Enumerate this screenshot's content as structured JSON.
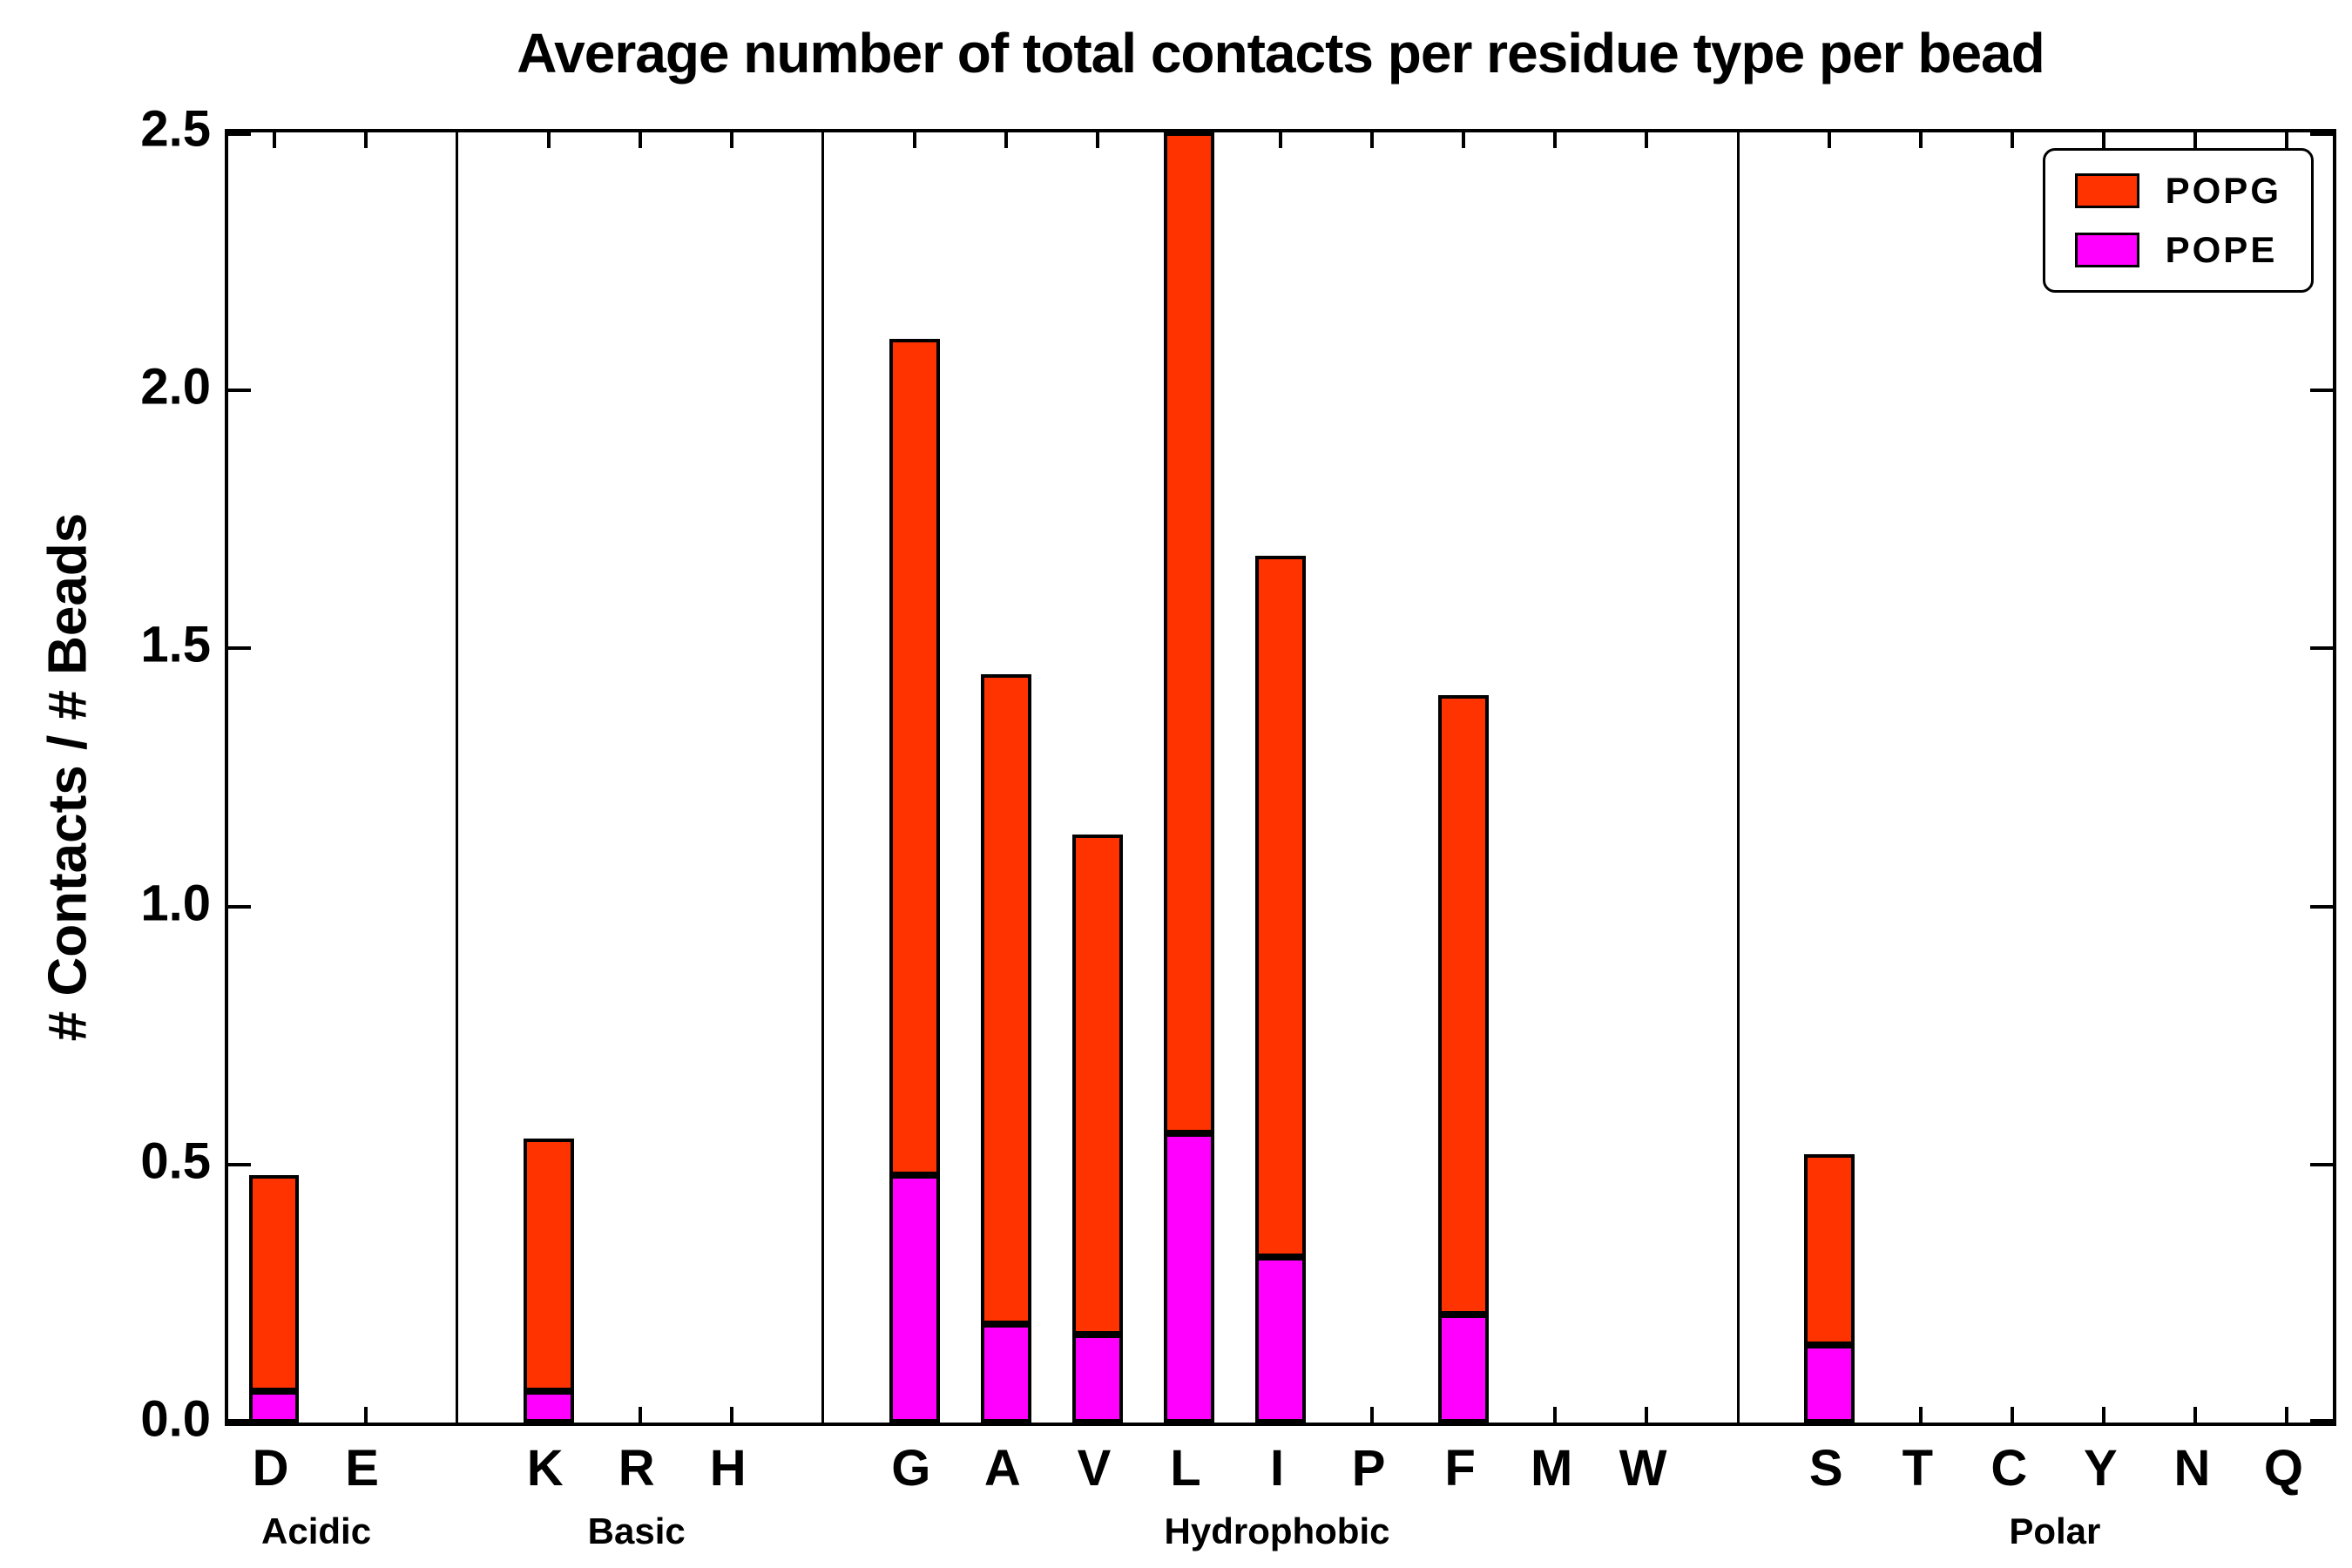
{
  "chart_data": {
    "type": "bar",
    "stacked": true,
    "title": "Average number of total contacts per residue type per bead",
    "ylabel": "# Contacts / # Beads",
    "ylim": [
      0,
      2.5
    ],
    "yticks": [
      0.0,
      0.5,
      1.0,
      1.5,
      2.0,
      2.5
    ],
    "categories": [
      "D",
      "E",
      "K",
      "R",
      "H",
      "G",
      "A",
      "V",
      "L",
      "I",
      "P",
      "F",
      "M",
      "W",
      "S",
      "T",
      "C",
      "Y",
      "N",
      "Q"
    ],
    "series": [
      {
        "name": "POPE",
        "color": "#FF00FF",
        "values": [
          0.06,
          0,
          0.06,
          0,
          0,
          0.48,
          0.19,
          0.17,
          0.56,
          0.32,
          0,
          0.21,
          0,
          0,
          0.15,
          0,
          0,
          0,
          0,
          0
        ]
      },
      {
        "name": "POPG",
        "color": "#FF3300",
        "values": [
          0.42,
          0,
          0.49,
          0,
          0,
          1.62,
          1.26,
          0.97,
          1.94,
          1.36,
          0,
          1.2,
          0,
          0,
          0.37,
          0,
          0,
          0,
          0,
          0
        ]
      }
    ],
    "totals": [
      0.48,
      0,
      0.55,
      0,
      0,
      2.1,
      1.45,
      1.14,
      2.5,
      1.68,
      0,
      1.41,
      0,
      0,
      0.52,
      0,
      0,
      0,
      0,
      0
    ],
    "groups": [
      {
        "label": "Acidic",
        "members": [
          "D",
          "E"
        ]
      },
      {
        "label": "Basic",
        "members": [
          "K",
          "R",
          "H"
        ]
      },
      {
        "label": "Hydrophobic",
        "members": [
          "G",
          "A",
          "V",
          "L",
          "I",
          "P",
          "F",
          "M",
          "W"
        ]
      },
      {
        "label": "Polar",
        "members": [
          "S",
          "T",
          "C",
          "Y",
          "N",
          "Q"
        ]
      }
    ],
    "legend": {
      "position": "upper right",
      "entries": [
        "POPG",
        "POPE"
      ]
    },
    "bar_edge_color": "#000000",
    "grid": false
  }
}
